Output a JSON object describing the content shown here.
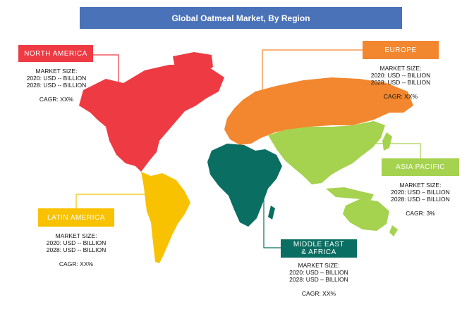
{
  "title": "Global Oatmeal  Market, By Region",
  "colors": {
    "title_bg": "#4a72b8",
    "north_america": "#ee3a43",
    "europe": "#f2872f",
    "asia_pacific": "#a5d24f",
    "latin_america": "#f8c200",
    "middle_east_africa": "#0b6e62"
  },
  "regions": {
    "north_america": {
      "label": "NORTH  AMERICA",
      "size_header": "MARKET SIZE:",
      "size_2020": "2020: USD -- BILLION",
      "size_2028": "2028: USD -- BILLION",
      "cagr": "CAGR: XX%"
    },
    "europe": {
      "label": "EUROPE",
      "size_header": "MARKET SIZE:",
      "size_2020": "2020: USD -- BILLION",
      "size_2028": "2028: USD -- BILLION",
      "cagr": "CAGR: XX%"
    },
    "asia_pacific": {
      "label": "ASIA PACIFIC",
      "size_header": "MARKET SIZE:",
      "size_2020": "2020: USD – BILLION",
      "size_2028": "2028: USD – BILLION",
      "cagr": "CAGR: 3%"
    },
    "latin_america": {
      "label": "LATIN  AMERICA",
      "size_header": "MARKET SIZE:",
      "size_2020": "2020: USD -- BILLION",
      "size_2028": "2028: USD -- BILLION",
      "cagr": "CAGR: XX%"
    },
    "middle_east_africa": {
      "label_line1": "MIDDLE EAST",
      "label_line2": "& AFRICA",
      "size_header": "MARKET SIZE:",
      "size_2020": "2020: USD – BILLION",
      "size_2028": "2028: USD – BILLION",
      "cagr": "CAGR: XX%"
    }
  }
}
